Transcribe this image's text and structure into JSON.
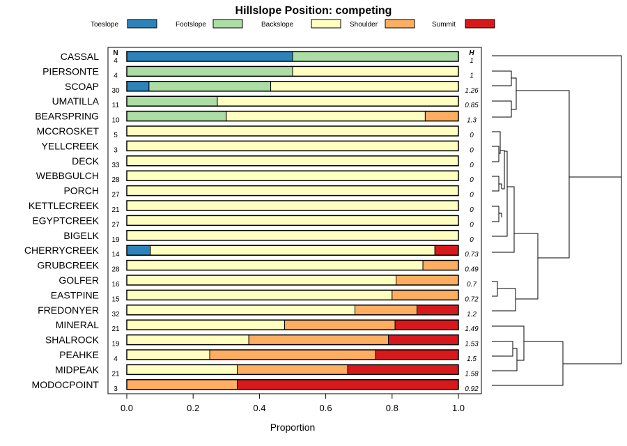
{
  "chart_data": {
    "type": "bar",
    "stacked": true,
    "orientation": "horizontal",
    "title": "Hillslope Position: competing",
    "xlabel": "Proportion",
    "ylabel": "",
    "xlim": [
      0,
      1
    ],
    "xticks": [
      "0.0",
      "0.2",
      "0.4",
      "0.6",
      "0.8",
      "1.0"
    ],
    "n_header": "N",
    "h_header": "H",
    "legend_position": "top",
    "series_names": [
      "Toeslope",
      "Footslope",
      "Backslope",
      "Shoulder",
      "Summit"
    ],
    "colors": [
      "#2b83ba",
      "#abdda4",
      "#ffffbf",
      "#fdae61",
      "#d7191c"
    ],
    "categories": [
      "CASSAL",
      "PIERSONTE",
      "SCOAP",
      "UMATILLA",
      "BEARSPRING",
      "MCCROSKET",
      "YELLCREEK",
      "DECK",
      "WEBBGULCH",
      "PORCH",
      "KETTLECREEK",
      "EGYPTCREEK",
      "BIGELK",
      "CHERRYCREEK",
      "GRUBCREEK",
      "GOLFER",
      "EASTPINE",
      "FREDONYER",
      "MINERAL",
      "SHALROCK",
      "PEAHKE",
      "MIDPEAK",
      "MODOCPOINT"
    ],
    "n": [
      "4",
      "4",
      "30",
      "11",
      "10",
      "5",
      "3",
      "33",
      "28",
      "27",
      "21",
      "27",
      "19",
      "14",
      "28",
      "16",
      "15",
      "32",
      "21",
      "19",
      "4",
      "21",
      "3"
    ],
    "h": [
      "1",
      "1",
      "1.26",
      "0.85",
      "1.3",
      "0",
      "0",
      "0",
      "0",
      "0",
      "0",
      "0",
      "0",
      "0.73",
      "0.49",
      "0.7",
      "0.72",
      "1.2",
      "1.49",
      "1.53",
      "1.5",
      "1.58",
      "0.92"
    ],
    "proportions": [
      [
        0.5,
        0.5,
        0,
        0,
        0
      ],
      [
        0,
        0.5,
        0.5,
        0,
        0
      ],
      [
        0.067,
        0.367,
        0.566,
        0,
        0
      ],
      [
        0,
        0.273,
        0.727,
        0,
        0
      ],
      [
        0,
        0.3,
        0.6,
        0.1,
        0
      ],
      [
        0,
        0,
        1,
        0,
        0
      ],
      [
        0,
        0,
        1,
        0,
        0
      ],
      [
        0,
        0,
        1,
        0,
        0
      ],
      [
        0,
        0,
        1,
        0,
        0
      ],
      [
        0,
        0,
        1,
        0,
        0
      ],
      [
        0,
        0,
        1,
        0,
        0
      ],
      [
        0,
        0,
        1,
        0,
        0
      ],
      [
        0,
        0,
        1,
        0,
        0
      ],
      [
        0.071,
        0,
        0.858,
        0,
        0.071
      ],
      [
        0,
        0,
        0.893,
        0.107,
        0
      ],
      [
        0,
        0,
        0.812,
        0.188,
        0
      ],
      [
        0,
        0,
        0.8,
        0.2,
        0
      ],
      [
        0,
        0,
        0.688,
        0.187,
        0.125
      ],
      [
        0,
        0,
        0.476,
        0.333,
        0.191
      ],
      [
        0,
        0,
        0.368,
        0.421,
        0.211
      ],
      [
        0,
        0,
        0.25,
        0.5,
        0.25
      ],
      [
        0,
        0,
        0.333,
        0.333,
        0.334
      ],
      [
        0,
        0,
        0,
        0.333,
        0.667
      ]
    ]
  }
}
